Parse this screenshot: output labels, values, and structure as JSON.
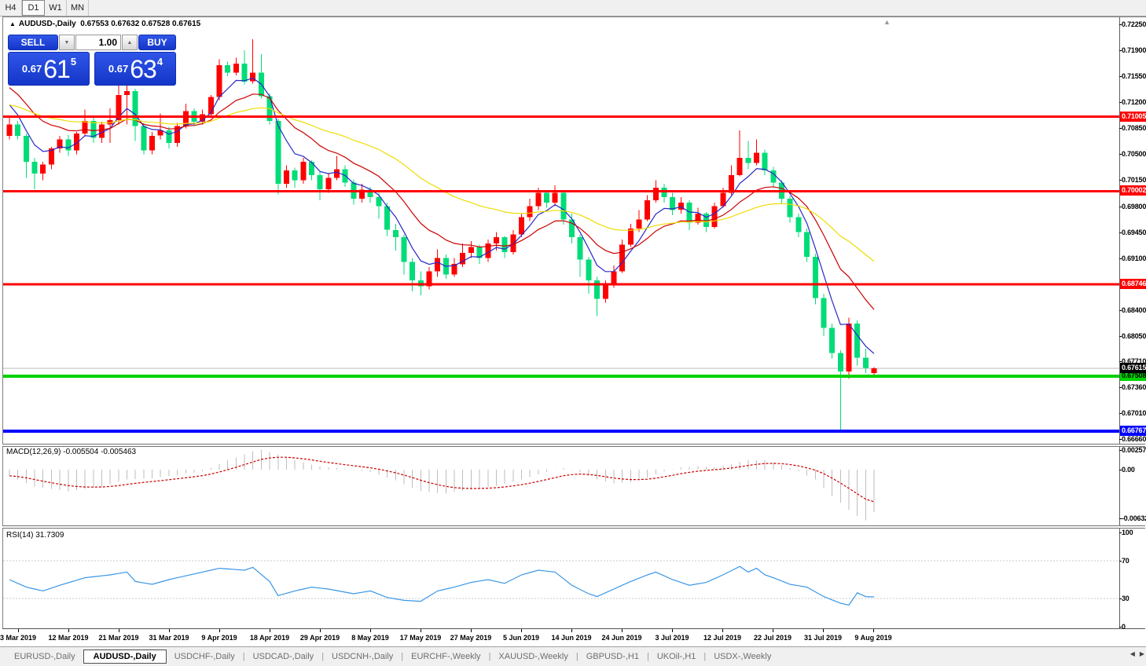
{
  "toolbar": {
    "timeframes": [
      {
        "label": "H4",
        "active": false
      },
      {
        "label": "D1",
        "active": true
      },
      {
        "label": "W1",
        "active": false
      },
      {
        "label": "MN",
        "active": false
      }
    ]
  },
  "trade_panel": {
    "sell_label": "SELL",
    "buy_label": "BUY",
    "volume": "1.00",
    "sell_small": "0.67",
    "sell_big": "61",
    "sell_sup": "5",
    "buy_small": "0.67",
    "buy_big": "63",
    "buy_sup": "4"
  },
  "chart_data": {
    "type": "candlestick",
    "title_symbol": "AUDUSD-,Daily",
    "title_ohlc": "0.67553 0.67632 0.67528 0.67615",
    "colors": {
      "bull": "#FF0000",
      "bear": "#00DC78",
      "current_line": "#B8B8B8"
    },
    "price_ticks": [
      "0.72250",
      "0.71900",
      "0.71550",
      "0.71200",
      "0.70850",
      "0.70500",
      "0.70150",
      "0.69800",
      "0.69450",
      "0.69100",
      "0.68400",
      "0.68050",
      "0.67710",
      "0.67360",
      "0.67010",
      "0.66660"
    ],
    "hlines": [
      {
        "value": 0.71005,
        "label": "0.71005",
        "color": "#FF0000",
        "thickness": 3,
        "label_bg": "#FF0000",
        "label_fg": "#FFFFFF"
      },
      {
        "value": 0.70002,
        "label": "0.70002",
        "color": "#FF0000",
        "thickness": 3,
        "label_bg": "#FF0000",
        "label_fg": "#FFFFFF"
      },
      {
        "value": 0.68746,
        "label": "0.68746",
        "color": "#FF0000",
        "thickness": 3,
        "label_bg": "#FF0000",
        "label_fg": "#FFFFFF"
      },
      {
        "value": 0.67508,
        "label": "0.67508",
        "color": "#00D200",
        "thickness": 4,
        "label_bg": "#00D200",
        "label_fg": "#000000"
      },
      {
        "value": 0.66767,
        "label": "0.66767",
        "color": "#0000FF",
        "thickness": 4,
        "label_bg": "#0000FF",
        "label_fg": "#FFFFFF"
      }
    ],
    "current_price": {
      "value": 0.67615,
      "label": "0.67615",
      "label_bg": "#000000",
      "label_fg": "#FFFFFF"
    },
    "moving_averages": [
      {
        "name": "ma-fast",
        "period": 5,
        "seed": 0.713,
        "color": "#2828C8"
      },
      {
        "name": "ma-mid",
        "period": 13,
        "seed": 0.7148,
        "color": "#CC0000"
      },
      {
        "name": "ma-slow",
        "period": 34,
        "seed": 0.7118,
        "color": "#EEDC00"
      }
    ],
    "candles": [
      [
        0.7075,
        0.7102,
        0.707,
        0.709
      ],
      [
        0.709,
        0.7095,
        0.707,
        0.7075
      ],
      [
        0.7075,
        0.7078,
        0.7018,
        0.704
      ],
      [
        0.704,
        0.7045,
        0.7003,
        0.7024
      ],
      [
        0.7024,
        0.704,
        0.7015,
        0.7036
      ],
      [
        0.7036,
        0.706,
        0.703,
        0.7058
      ],
      [
        0.7058,
        0.7075,
        0.7052,
        0.707
      ],
      [
        0.707,
        0.7076,
        0.7048,
        0.7055
      ],
      [
        0.7055,
        0.708,
        0.705,
        0.7078
      ],
      [
        0.7078,
        0.711,
        0.7075,
        0.7095
      ],
      [
        0.7095,
        0.7099,
        0.7065,
        0.7072
      ],
      [
        0.7072,
        0.7094,
        0.7065,
        0.709
      ],
      [
        0.709,
        0.7112,
        0.7065,
        0.7096
      ],
      [
        0.7096,
        0.7145,
        0.709,
        0.713
      ],
      [
        0.713,
        0.7168,
        0.709,
        0.7135
      ],
      [
        0.7135,
        0.7138,
        0.7068,
        0.7088
      ],
      [
        0.7088,
        0.7092,
        0.705,
        0.7055
      ],
      [
        0.7055,
        0.708,
        0.705,
        0.7075
      ],
      [
        0.7075,
        0.7105,
        0.707,
        0.7082
      ],
      [
        0.7082,
        0.7087,
        0.7058,
        0.7065
      ],
      [
        0.7065,
        0.7092,
        0.706,
        0.7088
      ],
      [
        0.7088,
        0.7118,
        0.7085,
        0.7108
      ],
      [
        0.7108,
        0.7112,
        0.7088,
        0.7094
      ],
      [
        0.7094,
        0.711,
        0.709,
        0.7104
      ],
      [
        0.7104,
        0.713,
        0.71,
        0.7127
      ],
      [
        0.7127,
        0.7178,
        0.7123,
        0.717
      ],
      [
        0.717,
        0.7175,
        0.7155,
        0.716
      ],
      [
        0.716,
        0.718,
        0.7156,
        0.7172
      ],
      [
        0.7172,
        0.719,
        0.7144,
        0.7148
      ],
      [
        0.7148,
        0.7205,
        0.7145,
        0.716
      ],
      [
        0.716,
        0.7185,
        0.7125,
        0.7128
      ],
      [
        0.7128,
        0.7132,
        0.709,
        0.7095
      ],
      [
        0.7095,
        0.7098,
        0.6996,
        0.701
      ],
      [
        0.701,
        0.7035,
        0.7005,
        0.7028
      ],
      [
        0.7028,
        0.7032,
        0.7005,
        0.7015
      ],
      [
        0.7015,
        0.7045,
        0.701,
        0.704
      ],
      [
        0.704,
        0.7042,
        0.7015,
        0.7022
      ],
      [
        0.7022,
        0.7026,
        0.6988,
        0.7003
      ],
      [
        0.7003,
        0.7025,
        0.6998,
        0.7018
      ],
      [
        0.7018,
        0.7048,
        0.7015,
        0.703
      ],
      [
        0.703,
        0.7035,
        0.7006,
        0.7012
      ],
      [
        0.7012,
        0.7016,
        0.6982,
        0.699
      ],
      [
        0.699,
        0.701,
        0.6985,
        0.7002
      ],
      [
        0.7002,
        0.7006,
        0.6985,
        0.6992
      ],
      [
        0.6992,
        0.6998,
        0.6963,
        0.698
      ],
      [
        0.698,
        0.6985,
        0.694,
        0.6948
      ],
      [
        0.6948,
        0.6956,
        0.692,
        0.6938
      ],
      [
        0.6938,
        0.6942,
        0.6888,
        0.6905
      ],
      [
        0.6905,
        0.691,
        0.6865,
        0.688
      ],
      [
        0.688,
        0.6892,
        0.686,
        0.6872
      ],
      [
        0.6872,
        0.6898,
        0.6868,
        0.6892
      ],
      [
        0.6892,
        0.6922,
        0.6885,
        0.691
      ],
      [
        0.691,
        0.6915,
        0.6882,
        0.6888
      ],
      [
        0.6888,
        0.691,
        0.6885,
        0.6902
      ],
      [
        0.6902,
        0.693,
        0.6898,
        0.6917
      ],
      [
        0.6917,
        0.6933,
        0.691,
        0.6925
      ],
      [
        0.6925,
        0.6928,
        0.6902,
        0.691
      ],
      [
        0.691,
        0.6935,
        0.6905,
        0.693
      ],
      [
        0.693,
        0.6945,
        0.692,
        0.6938
      ],
      [
        0.6938,
        0.694,
        0.691,
        0.6918
      ],
      [
        0.6918,
        0.6948,
        0.6915,
        0.6942
      ],
      [
        0.6942,
        0.697,
        0.6938,
        0.6965
      ],
      [
        0.6965,
        0.699,
        0.696,
        0.698
      ],
      [
        0.698,
        0.7005,
        0.6975,
        0.6998
      ],
      [
        0.6998,
        0.7,
        0.6978,
        0.6985
      ],
      [
        0.6985,
        0.7008,
        0.698,
        0.6998
      ],
      [
        0.6998,
        0.7,
        0.6955,
        0.6962
      ],
      [
        0.6962,
        0.697,
        0.693,
        0.6938
      ],
      [
        0.6938,
        0.6942,
        0.6885,
        0.6908
      ],
      [
        0.6908,
        0.6912,
        0.6862,
        0.688
      ],
      [
        0.688,
        0.6885,
        0.6832,
        0.6855
      ],
      [
        0.6855,
        0.688,
        0.685,
        0.6875
      ],
      [
        0.6875,
        0.69,
        0.687,
        0.6892
      ],
      [
        0.6892,
        0.6935,
        0.689,
        0.6928
      ],
      [
        0.6928,
        0.6956,
        0.6925,
        0.695
      ],
      [
        0.695,
        0.6975,
        0.6945,
        0.6962
      ],
      [
        0.6962,
        0.6995,
        0.696,
        0.6988
      ],
      [
        0.6988,
        0.7015,
        0.6985,
        0.7005
      ],
      [
        0.7005,
        0.701,
        0.6985,
        0.6992
      ],
      [
        0.6992,
        0.6998,
        0.6968,
        0.6975
      ],
      [
        0.6975,
        0.6992,
        0.697,
        0.6985
      ],
      [
        0.6985,
        0.6988,
        0.6948,
        0.6958
      ],
      [
        0.6958,
        0.6978,
        0.6955,
        0.697
      ],
      [
        0.697,
        0.6972,
        0.6945,
        0.6952
      ],
      [
        0.6952,
        0.6985,
        0.695,
        0.698
      ],
      [
        0.698,
        0.7005,
        0.6978,
        0.6998
      ],
      [
        0.6998,
        0.7035,
        0.6995,
        0.7022
      ],
      [
        0.7022,
        0.7082,
        0.702,
        0.7045
      ],
      [
        0.7045,
        0.7068,
        0.703,
        0.7038
      ],
      [
        0.7038,
        0.707,
        0.7035,
        0.7052
      ],
      [
        0.7052,
        0.7056,
        0.7022,
        0.7028
      ],
      [
        0.7028,
        0.7033,
        0.7005,
        0.7012
      ],
      [
        0.7012,
        0.7015,
        0.6983,
        0.699
      ],
      [
        0.699,
        0.6994,
        0.6958,
        0.6965
      ],
      [
        0.6965,
        0.697,
        0.6938,
        0.6945
      ],
      [
        0.6945,
        0.695,
        0.6905,
        0.6912
      ],
      [
        0.6912,
        0.6916,
        0.6848,
        0.6856
      ],
      [
        0.6856,
        0.6862,
        0.6805,
        0.6816
      ],
      [
        0.6816,
        0.6822,
        0.6775,
        0.6782
      ],
      [
        0.6782,
        0.6786,
        0.6677,
        0.6757
      ],
      [
        0.6757,
        0.683,
        0.6748,
        0.6822
      ],
      [
        0.6822,
        0.6826,
        0.6765,
        0.6776
      ],
      [
        0.6776,
        0.6788,
        0.6755,
        0.6762
      ],
      [
        0.67553,
        0.67632,
        0.67528,
        0.67615
      ]
    ],
    "macd": {
      "label": "MACD(12,26,9) -0.005504 -0.005463",
      "main_value": "-0.005504",
      "signal_value": "-0.005463",
      "axis": [
        "0.002574",
        "0.00",
        "-0.00632"
      ],
      "hist_color": "#BEBEBE",
      "signal_color": "#CC0000",
      "main_anchors": [
        [
          0,
          -0.0008
        ],
        [
          3,
          -0.0022
        ],
        [
          7,
          -0.0028
        ],
        [
          11,
          -0.0022
        ],
        [
          14,
          -0.0013
        ],
        [
          17,
          -0.0011
        ],
        [
          20,
          -0.0007
        ],
        [
          23,
          -0.0002
        ],
        [
          26,
          0.0012
        ],
        [
          29,
          0.0024
        ],
        [
          30,
          0.0026
        ],
        [
          32,
          0.002
        ],
        [
          34,
          0.0012
        ],
        [
          37,
          0.0004
        ],
        [
          40,
          0.0001
        ],
        [
          43,
          -0.0003
        ],
        [
          46,
          -0.0014
        ],
        [
          49,
          -0.0028
        ],
        [
          52,
          -0.0031
        ],
        [
          55,
          -0.0026
        ],
        [
          58,
          -0.0021
        ],
        [
          61,
          -0.0013
        ],
        [
          64,
          -0.0003
        ],
        [
          66,
          0.0002
        ],
        [
          68,
          -0.0003
        ],
        [
          70,
          -0.0013
        ],
        [
          72,
          -0.0018
        ],
        [
          74,
          -0.0016
        ],
        [
          76,
          -0.001
        ],
        [
          78,
          -0.0002
        ],
        [
          80,
          0.0003
        ],
        [
          82,
          0.0004
        ],
        [
          84,
          0.0003
        ],
        [
          86,
          0.0007
        ],
        [
          88,
          0.0013
        ],
        [
          90,
          0.0012
        ],
        [
          92,
          0.0006
        ],
        [
          94,
          -0.0002
        ],
        [
          96,
          -0.0013
        ],
        [
          98,
          -0.0034
        ],
        [
          100,
          -0.0052
        ],
        [
          101,
          -0.006
        ],
        [
          102,
          -0.0066
        ],
        [
          103,
          -0.0055
        ]
      ]
    },
    "rsi": {
      "label": "RSI(14) 31.7309",
      "value": "31.7309",
      "axis": [
        "100",
        "70",
        "30",
        "0"
      ],
      "levels": [
        70,
        30
      ],
      "line_color": "#3A96E8",
      "anchors": [
        [
          0,
          50
        ],
        [
          2,
          42
        ],
        [
          4,
          38
        ],
        [
          6,
          44
        ],
        [
          9,
          52
        ],
        [
          12,
          55
        ],
        [
          14,
          58
        ],
        [
          15,
          48
        ],
        [
          17,
          45
        ],
        [
          19,
          50
        ],
        [
          22,
          56
        ],
        [
          25,
          62
        ],
        [
          28,
          60
        ],
        [
          29,
          63
        ],
        [
          31,
          48
        ],
        [
          32,
          33
        ],
        [
          34,
          38
        ],
        [
          36,
          42
        ],
        [
          38,
          40
        ],
        [
          41,
          35
        ],
        [
          43,
          38
        ],
        [
          45,
          31
        ],
        [
          47,
          28
        ],
        [
          49,
          27
        ],
        [
          51,
          38
        ],
        [
          53,
          42
        ],
        [
          55,
          47
        ],
        [
          57,
          50
        ],
        [
          59,
          46
        ],
        [
          61,
          55
        ],
        [
          63,
          60
        ],
        [
          65,
          58
        ],
        [
          67,
          44
        ],
        [
          69,
          35
        ],
        [
          70,
          32
        ],
        [
          72,
          40
        ],
        [
          74,
          48
        ],
        [
          76,
          55
        ],
        [
          77,
          58
        ],
        [
          79,
          50
        ],
        [
          81,
          44
        ],
        [
          83,
          47
        ],
        [
          85,
          55
        ],
        [
          87,
          64
        ],
        [
          88,
          58
        ],
        [
          89,
          62
        ],
        [
          90,
          55
        ],
        [
          91,
          52
        ],
        [
          93,
          45
        ],
        [
          95,
          42
        ],
        [
          97,
          32
        ],
        [
          99,
          25
        ],
        [
          100,
          23
        ],
        [
          101,
          36
        ],
        [
          102,
          32
        ],
        [
          103,
          31.7
        ]
      ]
    },
    "date_labels": [
      "3 Mar 2019",
      "12 Mar 2019",
      "21 Mar 2019",
      "31 Mar 2019",
      "9 Apr 2019",
      "18 Apr 2019",
      "29 Apr 2019",
      "8 May 2019",
      "17 May 2019",
      "27 May 2019",
      "5 Jun 2019",
      "14 Jun 2019",
      "24 Jun 2019",
      "3 Jul 2019",
      "12 Jul 2019",
      "22 Jul 2019",
      "31 Jul 2019",
      "9 Aug 2019"
    ]
  },
  "tabs": [
    {
      "label": "EURUSD-,Daily",
      "active": false
    },
    {
      "label": "AUDUSD-,Daily",
      "active": true
    },
    {
      "label": "USDCHF-,Daily",
      "active": false
    },
    {
      "label": "USDCAD-,Daily",
      "active": false
    },
    {
      "label": "USDCNH-,Daily",
      "active": false
    },
    {
      "label": "EURCHF-,Weekly",
      "active": false
    },
    {
      "label": "XAUUSD-,Weekly",
      "active": false
    },
    {
      "label": "GBPUSD-,H1",
      "active": false
    },
    {
      "label": "UKOil-,H1",
      "active": false
    },
    {
      "label": "USDX-,Weekly",
      "active": false
    }
  ],
  "tab_scroll": {
    "left": "◀",
    "right": "▶"
  },
  "marker": {
    "collapse": "▲",
    "shift": "▲"
  }
}
